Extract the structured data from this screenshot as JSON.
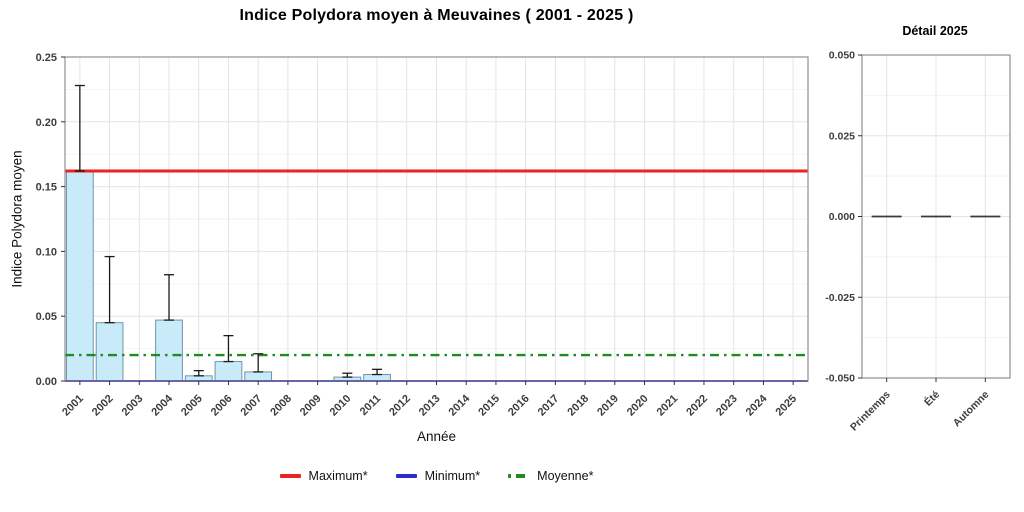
{
  "title": "Indice Polydora moyen à Meuvaines ( 2001 - 2025 )",
  "colors": {
    "bar_fill": "#c9eaf8",
    "bar_border": "#6d96ab",
    "error_bar": "#1a1a1a",
    "grid_major": "#e4e4e4",
    "grid_minor": "#f2f2f2",
    "panel_border": "#8f8f8f",
    "tick_mark": "#333333",
    "zero_marker": "#3a3a3a"
  },
  "chart_data": [
    {
      "type": "bar",
      "title": "",
      "xlabel": "Année",
      "ylabel": "Indice Polydora moyen",
      "ylim": [
        0,
        0.25
      ],
      "grid": true,
      "legend_position": "bottom",
      "yticks": [
        {
          "v": 0.0,
          "label": "0.00"
        },
        {
          "v": 0.05,
          "label": "0.05"
        },
        {
          "v": 0.1,
          "label": "0.10"
        },
        {
          "v": 0.15,
          "label": "0.15"
        },
        {
          "v": 0.2,
          "label": "0.20"
        },
        {
          "v": 0.25,
          "label": "0.25"
        }
      ],
      "categories": [
        "2001",
        "2002",
        "2003",
        "2004",
        "2005",
        "2006",
        "2007",
        "2008",
        "2009",
        "2010",
        "2011",
        "2012",
        "2013",
        "2014",
        "2015",
        "2016",
        "2017",
        "2018",
        "2019",
        "2020",
        "2021",
        "2022",
        "2023",
        "2024",
        "2025"
      ],
      "values": [
        0.162,
        0.045,
        0,
        0.047,
        0.004,
        0.015,
        0.007,
        0,
        0,
        0.003,
        0.005,
        0,
        0,
        0,
        0,
        0,
        0,
        0,
        0,
        0,
        0,
        0,
        0,
        0,
        0
      ],
      "error_high": [
        0.228,
        0.096,
        0,
        0.082,
        0.008,
        0.035,
        0.021,
        0,
        0,
        0.006,
        0.009,
        0,
        0,
        0,
        0,
        0,
        0,
        0,
        0,
        0,
        0,
        0,
        0,
        0,
        0
      ],
      "reference_lines": [
        {
          "name": "maximum",
          "label": "Maximum*",
          "value": 0.162,
          "color": "#ee2222",
          "style": "solid",
          "width": 3
        },
        {
          "name": "minimum",
          "label": "Minimum*",
          "value": 0.0,
          "color": "#2b2bcf",
          "style": "solid",
          "width": 2
        },
        {
          "name": "moyenne",
          "label": "Moyenne*",
          "value": 0.02,
          "color": "#1e8c1e",
          "style": "dashdot",
          "width": 2.4
        }
      ]
    },
    {
      "type": "bar",
      "title": "Détail 2025",
      "xlabel": "",
      "ylabel": "",
      "ylim": [
        -0.05,
        0.05
      ],
      "grid": true,
      "yticks": [
        {
          "v": 0.05,
          "label": "0.050"
        },
        {
          "v": 0.025,
          "label": "0.025"
        },
        {
          "v": 0.0,
          "label": "0.000"
        },
        {
          "v": -0.025,
          "label": "-0.025"
        },
        {
          "v": -0.05,
          "label": "-0.050"
        }
      ],
      "categories": [
        "Printemps",
        "Été",
        "Automne"
      ],
      "values": [
        0,
        0,
        0
      ]
    }
  ],
  "legend": {
    "items": [
      {
        "label": "Maximum*",
        "color": "#ee2222",
        "style": "solid"
      },
      {
        "label": "Minimum*",
        "color": "#2b2bcf",
        "style": "solid"
      },
      {
        "label": "Moyenne*",
        "color": "#1e8c1e",
        "style": "dashdot"
      }
    ]
  }
}
